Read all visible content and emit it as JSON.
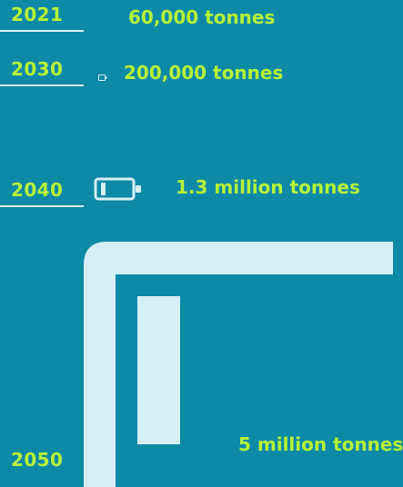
{
  "rows": [
    {
      "year": "2021",
      "amount": "60,000 tonnes"
    },
    {
      "year": "2030",
      "amount": "200,000 tonnes"
    },
    {
      "year": "2040",
      "amount": "1.3 million tonnes"
    },
    {
      "year": "2050",
      "amount": "5 million tonnes"
    }
  ],
  "colors": {
    "background": "#0e8aa7",
    "accent": "#b6f237",
    "battery": "#d6eef6",
    "rule": "#d6eef6"
  },
  "icons": {
    "battery": "battery-icon"
  }
}
